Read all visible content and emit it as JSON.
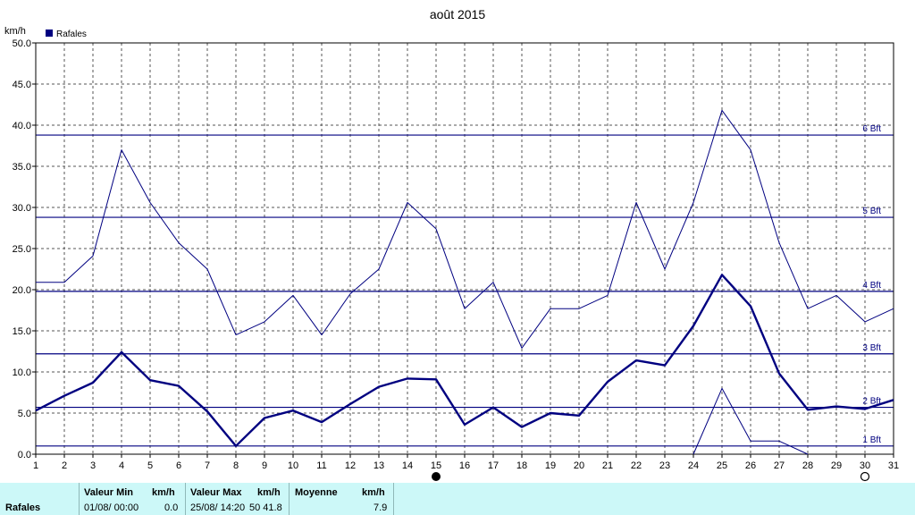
{
  "chart_data": {
    "type": "line",
    "title": "août 2015",
    "ylabel": "km/h",
    "legend": [
      "Rafales"
    ],
    "legend_color": "#000080",
    "legend_position": "top-left",
    "ylim": [
      0,
      50
    ],
    "yticks": [
      "0.0",
      "5.0",
      "10.0",
      "15.0",
      "20.0",
      "25.0",
      "30.0",
      "35.0",
      "40.0",
      "45.0",
      "50.0"
    ],
    "x": [
      1,
      2,
      3,
      4,
      5,
      6,
      7,
      8,
      9,
      10,
      11,
      12,
      13,
      14,
      15,
      16,
      17,
      18,
      19,
      20,
      21,
      22,
      23,
      24,
      25,
      26,
      27,
      28,
      29,
      30,
      31
    ],
    "grid": true,
    "series": [
      {
        "name": "Rafales",
        "role": "mean",
        "color": "#000080",
        "values": [
          5.3,
          7.1,
          8.7,
          12.4,
          9.0,
          8.3,
          5.2,
          1.0,
          4.4,
          5.3,
          3.9,
          6.1,
          8.2,
          9.2,
          9.1,
          3.6,
          5.7,
          3.3,
          5.0,
          4.7,
          8.8,
          11.4,
          10.8,
          15.6,
          21.8,
          18.0,
          9.8,
          5.4,
          5.8,
          5.5,
          6.6
        ]
      },
      {
        "role": "max",
        "color": "#000080",
        "values": [
          20.9,
          20.9,
          24.1,
          37.0,
          30.6,
          25.7,
          22.5,
          14.5,
          16.1,
          19.3,
          14.5,
          19.5,
          22.5,
          30.6,
          27.4,
          17.7,
          20.9,
          12.9,
          17.7,
          17.7,
          19.3,
          30.6,
          22.5,
          30.6,
          41.8,
          37.0,
          25.7,
          17.7,
          19.3,
          16.1,
          17.7
        ]
      },
      {
        "role": "min",
        "color": "#000080",
        "values": [
          null,
          null,
          null,
          null,
          null,
          null,
          null,
          null,
          null,
          null,
          null,
          null,
          null,
          null,
          null,
          null,
          null,
          null,
          null,
          null,
          null,
          null,
          null,
          0.0,
          8.0,
          1.6,
          1.6,
          0.0,
          null,
          null,
          null
        ]
      }
    ],
    "beaufort_lines": [
      {
        "label": "1 Bft",
        "value": 1.0
      },
      {
        "label": "2 Bft",
        "value": 5.7
      },
      {
        "label": "3 Bft",
        "value": 12.2
      },
      {
        "label": "4 Bft",
        "value": 19.8
      },
      {
        "label": "5 Bft",
        "value": 28.8
      },
      {
        "label": "6 Bft",
        "value": 38.8
      }
    ],
    "moon_phases": [
      {
        "day": 15,
        "icon": "new-moon-icon"
      },
      {
        "day": 30,
        "icon": "full-moon-icon"
      }
    ]
  },
  "stats": {
    "row_label": "Rafales",
    "min_header": "Valeur Min",
    "min_unit": "km/h",
    "min_date": "01/08/  00:00",
    "min_value": "0.0",
    "max_header": "Valeur Max",
    "max_unit": "km/h",
    "max_date": "25/08/  14:20",
    "max_value": "50  41.8",
    "avg_header": "Moyenne",
    "avg_unit": "km/h",
    "avg_value": "7.9"
  }
}
